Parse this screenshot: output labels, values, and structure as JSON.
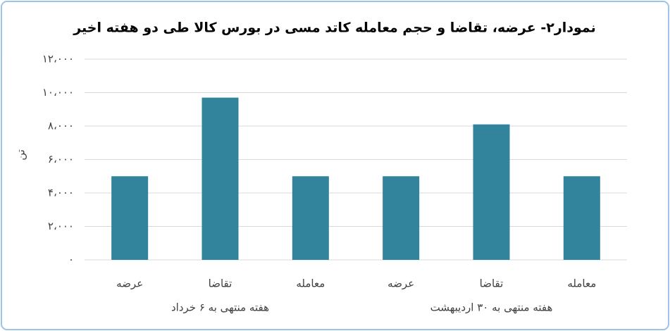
{
  "chart_data": {
    "type": "bar",
    "title": "نمودار۲- عرضه، تقاضا و حجم معامله کاتد مسی در بورس کالا طی دو هفته اخیر",
    "y_label": "تن",
    "color": "#31849b",
    "ylim": [
      0,
      12000
    ],
    "yticks": [
      {
        "value": 0,
        "label": "۰"
      },
      {
        "value": 2000,
        "label": "۲،۰۰۰"
      },
      {
        "value": 4000,
        "label": "۴،۰۰۰"
      },
      {
        "value": 6000,
        "label": "۶،۰۰۰"
      },
      {
        "value": 8000,
        "label": "۸،۰۰۰"
      },
      {
        "value": 10000,
        "label": "۱۰،۰۰۰"
      },
      {
        "value": 12000,
        "label": "۱۲،۰۰۰"
      }
    ],
    "grid": true,
    "groups": [
      {
        "name": "هفته منتهی به ۶ خرداد",
        "categories": [
          "عرضه",
          "تقاضا",
          "معامله"
        ],
        "values": [
          5000,
          9700,
          5000
        ]
      },
      {
        "name": "هفته منتهی به ۳۰ اردیبهشت",
        "categories": [
          "عرضه",
          "تقاضا",
          "معامله"
        ],
        "values": [
          5000,
          8100,
          5000
        ]
      }
    ]
  }
}
